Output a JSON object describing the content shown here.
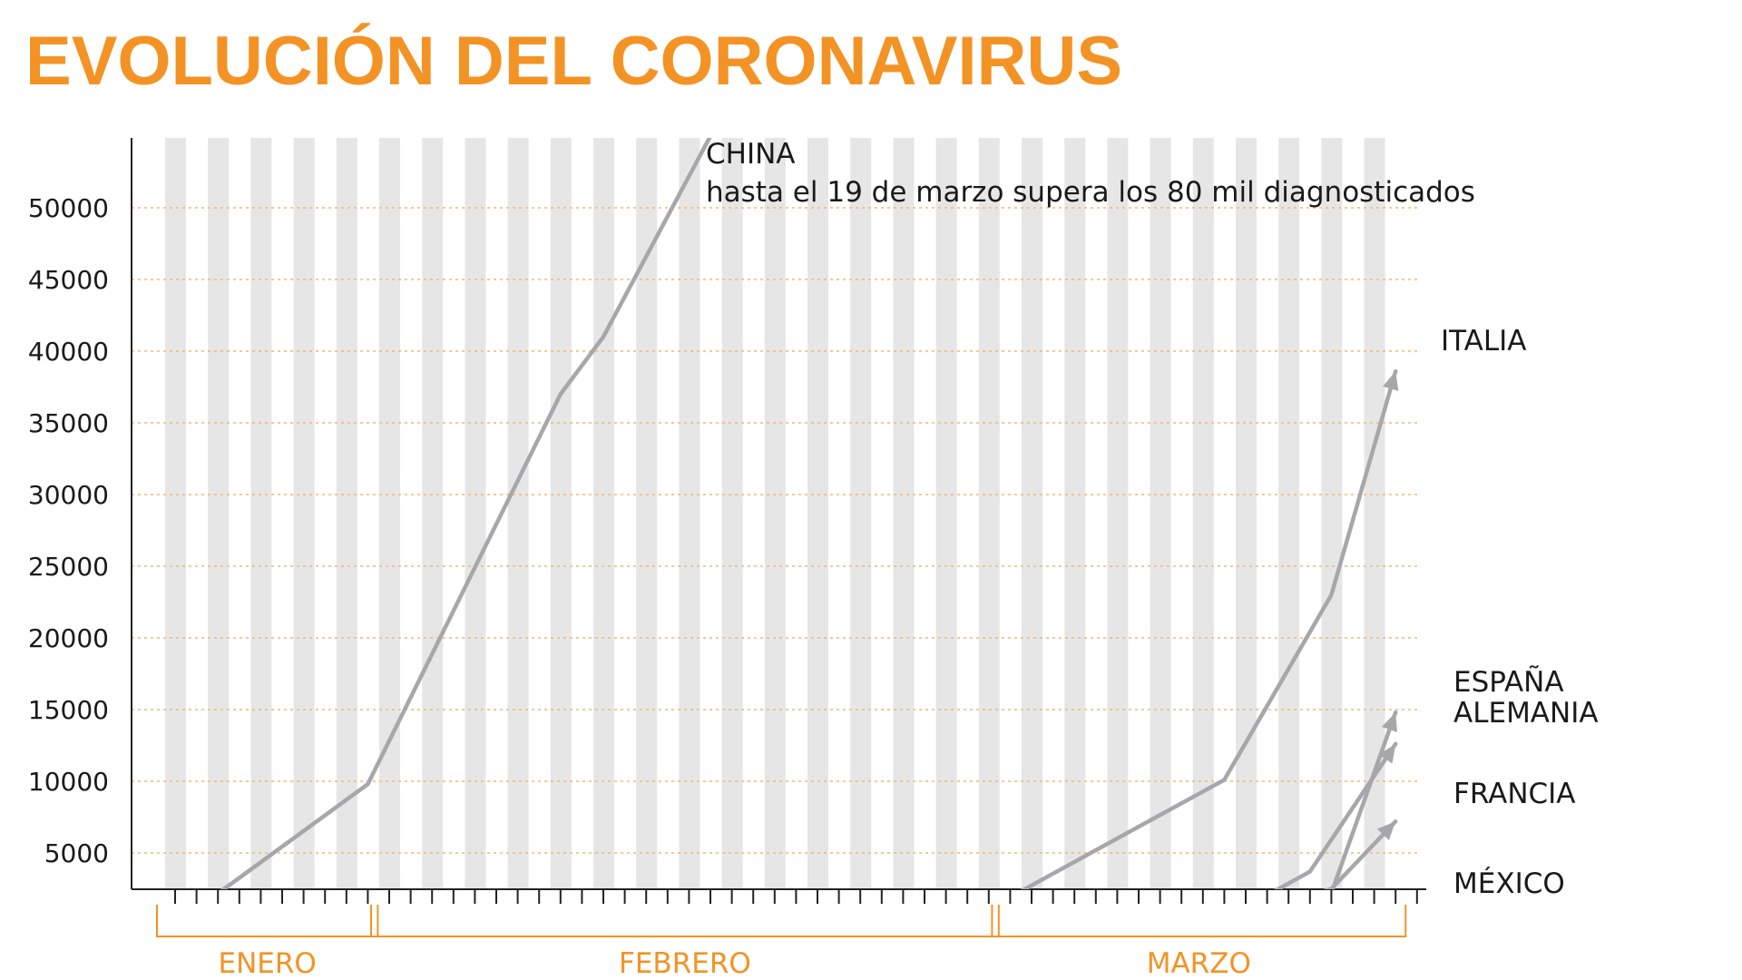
{
  "chart_data": {
    "type": "line",
    "title": "EVOLUCIÓN DEL CORONAVIRUS",
    "yticks": [
      5000,
      10000,
      15000,
      20000,
      25000,
      30000,
      35000,
      40000,
      45000,
      50000
    ],
    "ylim": [
      0,
      55000
    ],
    "x_unit": "día",
    "x_range": [
      "2020-01-22",
      "2020-03-19"
    ],
    "months": [
      {
        "name": "ENERO",
        "start": "2020-01-22",
        "end": "2020-01-31"
      },
      {
        "name": "FEBRERO",
        "start": "2020-02-01",
        "end": "2020-02-29"
      },
      {
        "name": "MARZO",
        "start": "2020-03-01",
        "end": "2020-03-19"
      }
    ],
    "grid": true,
    "legend": "none",
    "annotation": "hasta el 19 de marzo supera los 80 mil diagnosticados",
    "series": [
      {
        "name": "CHINA",
        "color": "#a7a7ab",
        "arrow": false,
        "x": [
          "2020-01-22",
          "2020-01-31",
          "2020-02-09",
          "2020-02-11",
          "2020-02-16"
        ],
        "y": [
          0,
          9800,
          37000,
          41000,
          55000
        ]
      },
      {
        "name": "ITALIA",
        "color": "#a7a7ab",
        "arrow": true,
        "x": [
          "2020-01-22",
          "2020-02-29",
          "2020-03-11",
          "2020-03-16",
          "2020-03-19"
        ],
        "y": [
          0,
          1100,
          10100,
          23000,
          38600
        ]
      },
      {
        "name": "ESPAÑA",
        "color": "#a7a7ab",
        "arrow": true,
        "x": [
          "2020-01-22",
          "2020-03-11",
          "2020-03-16",
          "2020-03-19"
        ],
        "y": [
          0,
          600,
          2200,
          14800
        ]
      },
      {
        "name": "ALEMANIA",
        "color": "#a7a7ab",
        "arrow": true,
        "x": [
          "2020-01-22",
          "2020-03-11",
          "2020-03-15",
          "2020-03-19"
        ],
        "y": [
          0,
          400,
          3700,
          12600
        ]
      },
      {
        "name": "FRANCIA",
        "color": "#a7a7ab",
        "arrow": true,
        "x": [
          "2020-01-22",
          "2020-03-11",
          "2020-03-16",
          "2020-03-19"
        ],
        "y": [
          0,
          200,
          2500,
          7200
        ]
      },
      {
        "name": "MÉXICO",
        "color": "#f08c1e",
        "arrow": true,
        "x": [
          "2020-02-28",
          "2020-03-19"
        ],
        "y": [
          0,
          700
        ]
      }
    ]
  },
  "colors": {
    "accent": "#f39325",
    "line": "#a7a7ab",
    "mexico": "#f08c1e",
    "stripe": "#e6e6e6",
    "gridline": "#f2b774",
    "axis": "#222222"
  }
}
